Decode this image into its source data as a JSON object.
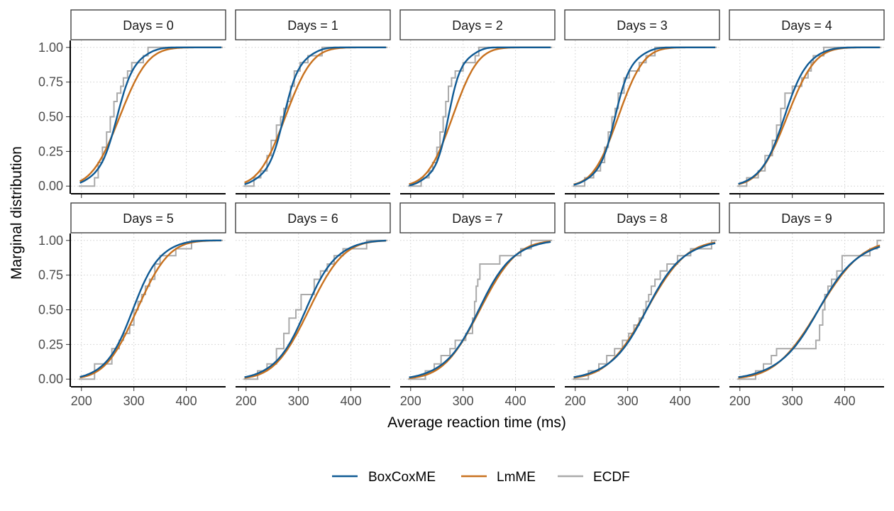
{
  "chart_data": {
    "type": "line",
    "xlabel": "Average reaction time (ms)",
    "ylabel": "Marginal distribution",
    "xlim": [
      180,
      475
    ],
    "ylim": [
      -0.05,
      1.05
    ],
    "x_ticks": [
      200,
      300,
      400
    ],
    "y_ticks": [
      0,
      0.25,
      0.5,
      0.75,
      1
    ],
    "y_tick_labels": [
      "0.00",
      "0.25",
      "0.50",
      "0.75",
      "1.00"
    ],
    "grid": true,
    "legend_position": "bottom",
    "colors": {
      "BoxCoxME": "#0F5A94",
      "LmME": "#C8711E",
      "ECDF": "#AAAAAA"
    },
    "legend": [
      {
        "name": "BoxCoxME",
        "color": "#0F5A94"
      },
      {
        "name": "LmME",
        "color": "#C8711E"
      },
      {
        "name": "ECDF",
        "color": "#AAAAAA"
      }
    ],
    "panels": [
      {
        "label": "Days = 0",
        "lm": [
          273,
          42
        ],
        "bc": [
          268,
          34,
          0.35
        ],
        "ecdf": [
          [
            195,
            0
          ],
          [
            205,
            0
          ],
          [
            225,
            0.06
          ],
          [
            232,
            0.17
          ],
          [
            240,
            0.28
          ],
          [
            248,
            0.39
          ],
          [
            255,
            0.5
          ],
          [
            262,
            0.61
          ],
          [
            268,
            0.67
          ],
          [
            275,
            0.72
          ],
          [
            280,
            0.78
          ],
          [
            288,
            0.83
          ],
          [
            296,
            0.89
          ],
          [
            310,
            0.89
          ],
          [
            318,
            0.94
          ],
          [
            327,
            1
          ],
          [
            470,
            1
          ]
        ]
      },
      {
        "label": "Days = 1",
        "lm": [
          275,
          40
        ],
        "bc": [
          272,
          32,
          0.4
        ],
        "ecdf": [
          [
            195,
            0
          ],
          [
            205,
            0
          ],
          [
            215,
            0.06
          ],
          [
            228,
            0.11
          ],
          [
            240,
            0.22
          ],
          [
            248,
            0.33
          ],
          [
            258,
            0.44
          ],
          [
            266,
            0.5
          ],
          [
            272,
            0.56
          ],
          [
            279,
            0.61
          ],
          [
            285,
            0.72
          ],
          [
            292,
            0.83
          ],
          [
            303,
            0.89
          ],
          [
            318,
            0.94
          ],
          [
            345,
            1
          ],
          [
            470,
            1
          ]
        ]
      },
      {
        "label": "Days = 2",
        "lm": [
          280,
          38
        ],
        "bc": [
          272,
          28,
          0.5
        ],
        "ecdf": [
          [
            195,
            0
          ],
          [
            205,
            0
          ],
          [
            220,
            0.06
          ],
          [
            235,
            0.11
          ],
          [
            242,
            0.17
          ],
          [
            250,
            0.28
          ],
          [
            256,
            0.39
          ],
          [
            262,
            0.5
          ],
          [
            267,
            0.61
          ],
          [
            272,
            0.72
          ],
          [
            278,
            0.78
          ],
          [
            285,
            0.83
          ],
          [
            300,
            0.89
          ],
          [
            318,
            0.89
          ],
          [
            323,
            0.94
          ],
          [
            330,
            1
          ],
          [
            470,
            1
          ]
        ]
      },
      {
        "label": "Days = 3",
        "lm": [
          282,
          38
        ],
        "bc": [
          276,
          32,
          0.4
        ],
        "ecdf": [
          [
            195,
            0
          ],
          [
            205,
            0
          ],
          [
            218,
            0.06
          ],
          [
            235,
            0.11
          ],
          [
            248,
            0.17
          ],
          [
            256,
            0.28
          ],
          [
            263,
            0.39
          ],
          [
            270,
            0.5
          ],
          [
            276,
            0.56
          ],
          [
            282,
            0.67
          ],
          [
            293,
            0.78
          ],
          [
            303,
            0.83
          ],
          [
            322,
            0.89
          ],
          [
            335,
            0.94
          ],
          [
            352,
            1
          ],
          [
            470,
            1
          ]
        ]
      },
      {
        "label": "Days = 4",
        "lm": [
          290,
          42
        ],
        "bc": [
          285,
          40,
          0.2
        ],
        "ecdf": [
          [
            195,
            0
          ],
          [
            205,
            0
          ],
          [
            213,
            0.06
          ],
          [
            222,
            0.06
          ],
          [
            235,
            0.11
          ],
          [
            248,
            0.22
          ],
          [
            262,
            0.33
          ],
          [
            270,
            0.44
          ],
          [
            278,
            0.56
          ],
          [
            286,
            0.67
          ],
          [
            300,
            0.72
          ],
          [
            318,
            0.78
          ],
          [
            330,
            0.83
          ],
          [
            336,
            0.89
          ],
          [
            340,
            0.94
          ],
          [
            360,
            1
          ],
          [
            470,
            1
          ]
        ]
      },
      {
        "label": "Days = 5",
        "lm": [
          306,
          48
        ],
        "bc": [
          298,
          46,
          0.2
        ],
        "ecdf": [
          [
            195,
            0
          ],
          [
            205,
            0
          ],
          [
            225,
            0.11
          ],
          [
            258,
            0.22
          ],
          [
            272,
            0.28
          ],
          [
            280,
            0.33
          ],
          [
            292,
            0.39
          ],
          [
            300,
            0.5
          ],
          [
            308,
            0.56
          ],
          [
            315,
            0.61
          ],
          [
            322,
            0.67
          ],
          [
            330,
            0.72
          ],
          [
            340,
            0.83
          ],
          [
            350,
            0.89
          ],
          [
            380,
            0.94
          ],
          [
            400,
            0.94
          ],
          [
            410,
            1
          ],
          [
            470,
            1
          ]
        ]
      },
      {
        "label": "Days = 6",
        "lm": [
          320,
          52
        ],
        "bc": [
          314,
          52,
          0.2
        ],
        "ecdf": [
          [
            195,
            0
          ],
          [
            205,
            0
          ],
          [
            222,
            0.06
          ],
          [
            240,
            0.11
          ],
          [
            258,
            0.22
          ],
          [
            272,
            0.33
          ],
          [
            282,
            0.44
          ],
          [
            295,
            0.5
          ],
          [
            305,
            0.61
          ],
          [
            320,
            0.61
          ],
          [
            330,
            0.72
          ],
          [
            342,
            0.78
          ],
          [
            355,
            0.83
          ],
          [
            368,
            0.89
          ],
          [
            385,
            0.94
          ],
          [
            410,
            0.94
          ],
          [
            430,
            1
          ],
          [
            470,
            1
          ]
        ]
      },
      {
        "label": "Days = 7",
        "lm": [
          332,
          55
        ],
        "bc": [
          330,
          58,
          0.2
        ],
        "ecdf": [
          [
            195,
            0
          ],
          [
            205,
            0
          ],
          [
            228,
            0.06
          ],
          [
            245,
            0.11
          ],
          [
            258,
            0.17
          ],
          [
            275,
            0.22
          ],
          [
            285,
            0.28
          ],
          [
            305,
            0.33
          ],
          [
            318,
            0.44
          ],
          [
            322,
            0.56
          ],
          [
            325,
            0.67
          ],
          [
            328,
            0.72
          ],
          [
            332,
            0.83
          ],
          [
            360,
            0.83
          ],
          [
            370,
            0.89
          ],
          [
            410,
            0.94
          ],
          [
            430,
            1
          ],
          [
            470,
            1
          ]
        ]
      },
      {
        "label": "Days = 8",
        "lm": [
          336,
          60
        ],
        "bc": [
          336,
          62,
          0.2
        ],
        "ecdf": [
          [
            195,
            0
          ],
          [
            205,
            0
          ],
          [
            225,
            0.06
          ],
          [
            245,
            0.11
          ],
          [
            260,
            0.17
          ],
          [
            275,
            0.22
          ],
          [
            290,
            0.28
          ],
          [
            302,
            0.33
          ],
          [
            312,
            0.39
          ],
          [
            322,
            0.44
          ],
          [
            330,
            0.5
          ],
          [
            335,
            0.56
          ],
          [
            340,
            0.61
          ],
          [
            345,
            0.67
          ],
          [
            352,
            0.72
          ],
          [
            362,
            0.78
          ],
          [
            375,
            0.83
          ],
          [
            395,
            0.89
          ],
          [
            420,
            0.94
          ],
          [
            460,
            1
          ],
          [
            470,
            1
          ]
        ]
      },
      {
        "label": "Days = 9",
        "lm": [
          350,
          65
        ],
        "bc": [
          350,
          68,
          0.2
        ],
        "ecdf": [
          [
            195,
            0
          ],
          [
            205,
            0
          ],
          [
            218,
            0
          ],
          [
            230,
            0.06
          ],
          [
            245,
            0.11
          ],
          [
            260,
            0.17
          ],
          [
            270,
            0.22
          ],
          [
            330,
            0.22
          ],
          [
            345,
            0.28
          ],
          [
            352,
            0.39
          ],
          [
            358,
            0.5
          ],
          [
            362,
            0.61
          ],
          [
            368,
            0.67
          ],
          [
            375,
            0.72
          ],
          [
            385,
            0.78
          ],
          [
            395,
            0.89
          ],
          [
            440,
            0.89
          ],
          [
            448,
            0.94
          ],
          [
            462,
            1
          ],
          [
            470,
            1
          ]
        ]
      }
    ]
  }
}
